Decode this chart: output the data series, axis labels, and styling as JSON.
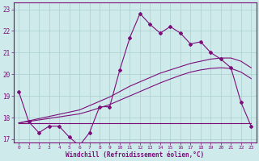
{
  "x": [
    0,
    1,
    2,
    3,
    4,
    5,
    6,
    7,
    8,
    9,
    10,
    11,
    12,
    13,
    14,
    15,
    16,
    17,
    18,
    19,
    20,
    21,
    22,
    23
  ],
  "y_main": [
    19.2,
    17.8,
    17.3,
    17.6,
    17.6,
    17.1,
    16.7,
    17.3,
    18.5,
    18.5,
    20.2,
    21.7,
    22.8,
    22.3,
    21.9,
    22.2,
    21.9,
    21.4,
    21.5,
    21.0,
    20.7,
    20.3,
    18.7,
    17.6
  ],
  "y_trend1": [
    17.75,
    17.85,
    17.95,
    18.05,
    18.15,
    18.25,
    18.35,
    18.55,
    18.75,
    18.95,
    19.2,
    19.45,
    19.65,
    19.85,
    20.05,
    20.2,
    20.35,
    20.5,
    20.6,
    20.7,
    20.75,
    20.75,
    20.6,
    20.3
  ],
  "y_trend2": [
    17.75,
    17.82,
    17.89,
    17.96,
    18.03,
    18.1,
    18.17,
    18.3,
    18.45,
    18.6,
    18.8,
    19.0,
    19.2,
    19.4,
    19.6,
    19.78,
    19.95,
    20.1,
    20.2,
    20.27,
    20.3,
    20.27,
    20.1,
    19.8
  ],
  "y_flat": [
    17.75,
    17.75,
    17.75,
    17.75,
    17.75,
    17.75,
    17.75,
    17.75,
    17.75,
    17.75,
    17.75,
    17.75,
    17.75,
    17.75,
    17.75,
    17.75,
    17.75,
    17.75,
    17.75,
    17.75,
    17.75,
    17.75,
    17.75,
    17.75
  ],
  "color": "#7b0e7b",
  "bg_color": "#ceeaea",
  "grid_color": "#aacece",
  "xlabel": "Windchill (Refroidissement éolien,°C)",
  "ylim": [
    16.85,
    23.3
  ],
  "xlim": [
    -0.5,
    23.5
  ],
  "yticks": [
    17,
    18,
    19,
    20,
    21,
    22,
    23
  ],
  "xticks": [
    0,
    1,
    2,
    3,
    4,
    5,
    6,
    7,
    8,
    9,
    10,
    11,
    12,
    13,
    14,
    15,
    16,
    17,
    18,
    19,
    20,
    21,
    22,
    23
  ]
}
